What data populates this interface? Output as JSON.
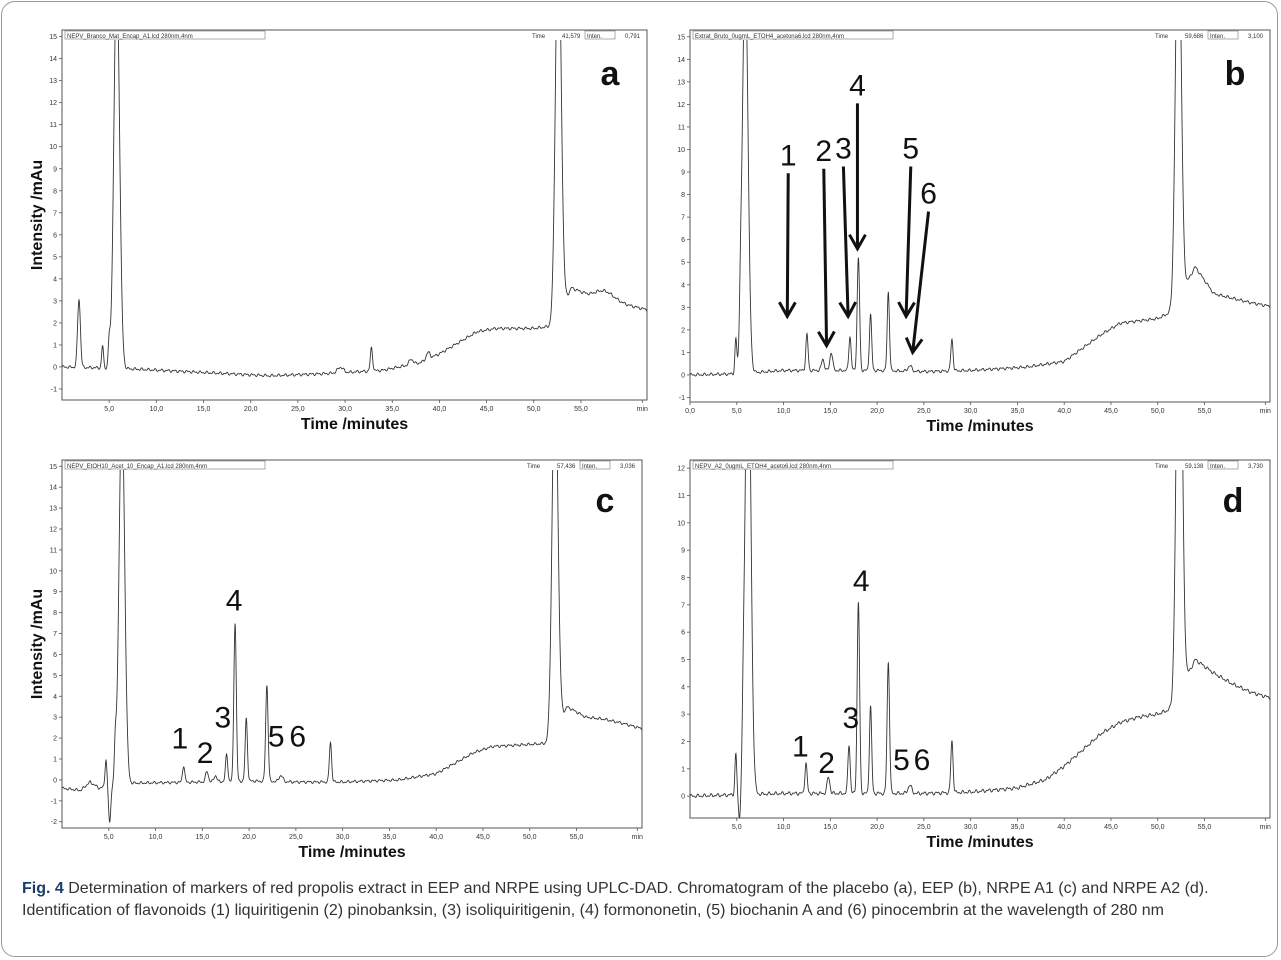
{
  "caption": {
    "fig_label": "Fig. 4",
    "text": "Determination of markers of red propolis extract in EEP and NRPE using UPLC-DAD. Chromatogram of the placebo (a), EEP (b), NRPE A1 (c) and NRPE A2 (d). Identification of flavonoids (1) liquiritigenin (2) pinobanksin, (3) isoliquiritigenin, (4) formononetin, (5) biochanin A and (6) pinocembrin at the wavelength of 280 nm"
  },
  "chart_data": [
    {
      "panel": "a",
      "type": "line",
      "xlabel": "Time /minutes",
      "ylabel": "Intensity /mAu",
      "header_file": "NEPV_Branco_Mat_Encap_A1.lcd 280nm,4nm",
      "header_time": "Time",
      "header_time_value": "41,579",
      "header_inten": "Inten.",
      "header_inten_value": "0,791",
      "xlim": [
        0,
        62
      ],
      "ylim": [
        -1.5,
        15.3
      ],
      "x_ticks": [
        "5,0",
        "10,0",
        "15,0",
        "20,0",
        "25,0",
        "30,0",
        "35,0",
        "40,0",
        "45,0",
        "50,0",
        "55,0",
        "min"
      ],
      "y_ticks": [
        "-1",
        "0",
        "1",
        "2",
        "3",
        "4",
        "5",
        "6",
        "7",
        "8",
        "9",
        "10",
        "11",
        "12",
        "13",
        "14",
        "15"
      ],
      "baseline": [
        [
          0,
          0
        ],
        [
          5,
          -0.05
        ],
        [
          8,
          -0.1
        ],
        [
          15,
          -0.25
        ],
        [
          22,
          -0.4
        ],
        [
          28,
          -0.3
        ],
        [
          34,
          -0.15
        ],
        [
          38,
          0.2
        ],
        [
          40,
          0.6
        ],
        [
          42,
          1.1
        ],
        [
          44,
          1.6
        ],
        [
          46,
          1.75
        ],
        [
          50,
          1.75
        ],
        [
          52,
          1.85
        ],
        [
          54,
          3.6
        ],
        [
          56,
          3.2
        ],
        [
          58,
          3.0
        ],
        [
          60,
          2.8
        ],
        [
          62,
          2.6
        ]
      ],
      "peaks": [
        [
          1.8,
          3.1,
          0.15
        ],
        [
          4.3,
          1.0,
          0.1
        ],
        [
          5.0,
          1.1,
          0.1
        ],
        [
          5.8,
          18,
          0.3
        ],
        [
          29.5,
          0.25,
          0.3
        ],
        [
          32.8,
          1.05,
          0.12
        ],
        [
          37,
          0.25,
          0.2
        ],
        [
          38.8,
          0.3,
          0.2
        ],
        [
          52.6,
          18,
          0.3
        ],
        [
          57.5,
          0.4,
          1.0
        ]
      ],
      "peak_labels": []
    },
    {
      "panel": "b",
      "type": "line",
      "xlabel": "Time /minutes",
      "ylabel": "",
      "header_file": "Extrat_Bruto_0ugmL_ETOH4_acetona6.lcd 280nm,4nm",
      "header_time": "Time",
      "header_time_value": "59,686",
      "header_inten": "Inten.",
      "header_inten_value": "3,100",
      "xlim": [
        0,
        62
      ],
      "ylim": [
        -1.2,
        15.3
      ],
      "x_ticks": [
        "0,0",
        "5,0",
        "10,0",
        "15,0",
        "20,0",
        "25,0",
        "30,0",
        "35,0",
        "40,0",
        "45,0",
        "50,0",
        "55,0",
        "min"
      ],
      "y_ticks": [
        "-1",
        "0",
        "1",
        "2",
        "3",
        "4",
        "5",
        "6",
        "7",
        "8",
        "9",
        "10",
        "11",
        "12",
        "13",
        "14",
        "15"
      ],
      "baseline": [
        [
          0,
          0
        ],
        [
          5,
          0.05
        ],
        [
          10,
          0.2
        ],
        [
          15,
          0.2
        ],
        [
          20,
          0.2
        ],
        [
          25,
          0.15
        ],
        [
          30,
          0.2
        ],
        [
          36,
          0.35
        ],
        [
          40,
          0.6
        ],
        [
          42,
          1.2
        ],
        [
          44,
          1.8
        ],
        [
          46,
          2.3
        ],
        [
          48,
          2.4
        ],
        [
          50,
          2.5
        ],
        [
          51.5,
          2.8
        ],
        [
          54,
          4.8
        ],
        [
          56,
          3.6
        ],
        [
          58,
          3.4
        ],
        [
          60,
          3.2
        ],
        [
          62,
          3.05
        ]
      ],
      "peaks": [
        [
          4.9,
          1.5,
          0.1
        ],
        [
          5.4,
          1.6,
          0.1
        ],
        [
          5.9,
          18,
          0.3
        ],
        [
          12.5,
          1.6,
          0.12
        ],
        [
          14.2,
          0.5,
          0.15
        ],
        [
          15.1,
          0.8,
          0.15
        ],
        [
          17.1,
          1.5,
          0.12
        ],
        [
          18.0,
          5.0,
          0.13
        ],
        [
          19.3,
          2.5,
          0.12
        ],
        [
          21.2,
          3.5,
          0.12
        ],
        [
          23.5,
          0.25,
          0.2
        ],
        [
          28.0,
          1.4,
          0.12
        ],
        [
          52.2,
          18,
          0.3
        ]
      ],
      "peak_labels": [
        {
          "text": "1",
          "lx": 10.5,
          "ly": 9.3,
          "ax": 10.4,
          "ay": 2.6
        },
        {
          "text": "2",
          "lx": 14.3,
          "ly": 9.5,
          "ax": 14.6,
          "ay": 1.3
        },
        {
          "text": "3",
          "lx": 16.4,
          "ly": 9.6,
          "ax": 16.9,
          "ay": 2.6
        },
        {
          "text": "4",
          "lx": 17.9,
          "ly": 12.4,
          "ax": 17.9,
          "ay": 5.6
        },
        {
          "text": "5",
          "lx": 23.6,
          "ly": 9.6,
          "ax": 23.1,
          "ay": 2.6
        },
        {
          "text": "6",
          "lx": 25.5,
          "ly": 7.6,
          "ax": 23.8,
          "ay": 1.0
        }
      ]
    },
    {
      "panel": "c",
      "type": "line",
      "xlabel": "Time /minutes",
      "ylabel": "Intensity /mAu",
      "header_file": "NEPV_EtOH10_Acet_10_Encap_A1.lcd 280nm,4nm",
      "header_time": "Time",
      "header_time_value": "57,436",
      "header_inten": "Inten.",
      "header_inten_value": "3,036",
      "xlim": [
        0,
        62
      ],
      "ylim": [
        -2.3,
        15.3
      ],
      "x_ticks": [
        "5,0",
        "10,0",
        "15,0",
        "20,0",
        "25,0",
        "30,0",
        "35,0",
        "40,0",
        "45,0",
        "50,0",
        "55,0",
        "min"
      ],
      "y_ticks": [
        "-2",
        "-1",
        "0",
        "1",
        "2",
        "3",
        "4",
        "5",
        "6",
        "7",
        "8",
        "9",
        "10",
        "11",
        "12",
        "13",
        "14",
        "15"
      ],
      "baseline": [
        [
          0,
          -0.4
        ],
        [
          2,
          -0.5
        ],
        [
          3,
          -0.1
        ],
        [
          4,
          -0.4
        ],
        [
          5.5,
          -0.2
        ],
        [
          8,
          -0.15
        ],
        [
          15,
          -0.1
        ],
        [
          20,
          -0.05
        ],
        [
          25,
          -0.1
        ],
        [
          30,
          -0.1
        ],
        [
          36,
          0.0
        ],
        [
          40,
          0.3
        ],
        [
          42,
          0.8
        ],
        [
          44,
          1.3
        ],
        [
          46,
          1.6
        ],
        [
          50,
          1.7
        ],
        [
          52,
          1.75
        ],
        [
          54,
          3.5
        ],
        [
          56,
          3.0
        ],
        [
          58,
          2.9
        ],
        [
          60,
          2.7
        ],
        [
          62,
          2.45
        ]
      ],
      "peaks": [
        [
          4.7,
          1.3,
          0.1
        ],
        [
          5.1,
          -1.8,
          0.12
        ],
        [
          5.7,
          1.6,
          0.1
        ],
        [
          6.4,
          18,
          0.3
        ],
        [
          13.0,
          0.8,
          0.12
        ],
        [
          15.5,
          0.5,
          0.15
        ],
        [
          16.4,
          0.3,
          0.15
        ],
        [
          17.6,
          1.3,
          0.12
        ],
        [
          18.5,
          7.6,
          0.13
        ],
        [
          19.7,
          3.0,
          0.12
        ],
        [
          21.9,
          4.6,
          0.13
        ],
        [
          23.4,
          0.3,
          0.2
        ],
        [
          28.7,
          1.9,
          0.12
        ],
        [
          52.7,
          18,
          0.3
        ]
      ],
      "peak_labels": [
        {
          "text": "1",
          "lx": 12.6,
          "ly": 1.5
        },
        {
          "text": "2",
          "lx": 15.3,
          "ly": 0.8
        },
        {
          "text": "3",
          "lx": 17.2,
          "ly": 2.5
        },
        {
          "text": "4",
          "lx": 18.4,
          "ly": 8.1
        },
        {
          "text": "5",
          "lx": 22.9,
          "ly": 1.6
        },
        {
          "text": "6",
          "lx": 25.2,
          "ly": 1.6
        }
      ]
    },
    {
      "panel": "d",
      "type": "line",
      "xlabel": "Time /minutes",
      "ylabel": "",
      "header_file": "NEPV_A2_0ugmL_ETOH4_aceto6.lcd 280nm,4nm",
      "header_time": "Time",
      "header_time_value": "59,138",
      "header_inten": "Inten.",
      "header_inten_value": "3,730",
      "xlim": [
        0,
        62
      ],
      "ylim": [
        -0.8,
        12.3
      ],
      "x_ticks": [
        "5,0",
        "10,0",
        "15,0",
        "20,0",
        "25,0",
        "30,0",
        "35,0",
        "40,0",
        "45,0",
        "50,0",
        "55,0",
        "min"
      ],
      "y_ticks": [
        "0",
        "1",
        "2",
        "3",
        "4",
        "5",
        "6",
        "7",
        "8",
        "9",
        "10",
        "11",
        "12"
      ],
      "baseline": [
        [
          0,
          0
        ],
        [
          5,
          0.05
        ],
        [
          10,
          0.1
        ],
        [
          15,
          0.1
        ],
        [
          20,
          0.1
        ],
        [
          25,
          0.1
        ],
        [
          30,
          0.15
        ],
        [
          35,
          0.3
        ],
        [
          38,
          0.6
        ],
        [
          40,
          1.1
        ],
        [
          42,
          1.7
        ],
        [
          44,
          2.3
        ],
        [
          46,
          2.7
        ],
        [
          48,
          2.9
        ],
        [
          50,
          3.0
        ],
        [
          51.5,
          3.2
        ],
        [
          54,
          5.0
        ],
        [
          56,
          4.5
        ],
        [
          58,
          4.1
        ],
        [
          60,
          3.8
        ],
        [
          62,
          3.6
        ]
      ],
      "peaks": [
        [
          4.9,
          1.5,
          0.1
        ],
        [
          5.3,
          -1.0,
          0.12
        ],
        [
          5.7,
          1.3,
          0.1
        ],
        [
          6.2,
          18,
          0.3
        ],
        [
          12.4,
          1.1,
          0.12
        ],
        [
          14.8,
          0.6,
          0.15
        ],
        [
          17.0,
          1.8,
          0.12
        ],
        [
          18.0,
          7.0,
          0.13
        ],
        [
          19.3,
          3.2,
          0.12
        ],
        [
          21.2,
          4.8,
          0.13
        ],
        [
          23.5,
          0.3,
          0.2
        ],
        [
          28.0,
          1.9,
          0.12
        ],
        [
          52.3,
          18,
          0.3
        ]
      ],
      "peak_labels": [
        {
          "text": "1",
          "lx": 11.8,
          "ly": 1.45
        },
        {
          "text": "2",
          "lx": 14.6,
          "ly": 0.85
        },
        {
          "text": "3",
          "lx": 17.2,
          "ly": 2.5
        },
        {
          "text": "4",
          "lx": 18.3,
          "ly": 7.5
        },
        {
          "text": "5",
          "lx": 22.6,
          "ly": 0.95
        },
        {
          "text": "6",
          "lx": 24.8,
          "ly": 0.95
        }
      ]
    }
  ]
}
